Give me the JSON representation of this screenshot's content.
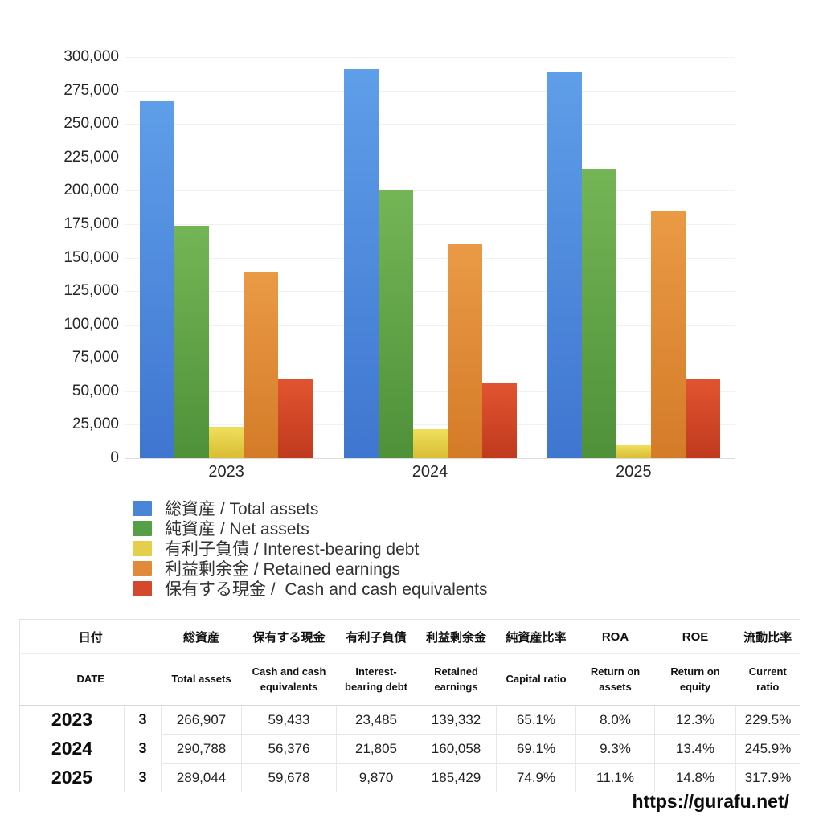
{
  "watermark": {
    "url": "https://gurafu.net/"
  },
  "chart_data": {
    "type": "bar",
    "title": "",
    "xlabel": "",
    "ylabel": "",
    "categories": [
      "2023",
      "2024",
      "2025"
    ],
    "series": [
      {
        "name": "総資産 / Total assets",
        "values": [
          266907,
          290788,
          289044
        ],
        "legend_color": "#4a86d8",
        "color_top": "#5f9ee9",
        "color_bottom": "#3f76d0"
      },
      {
        "name": "純資産 / Net assets",
        "values": [
          173757,
          200935,
          216494
        ],
        "legend_color": "#55a047",
        "color_top": "#74b556",
        "color_bottom": "#4f9139"
      },
      {
        "name": "有利子負債 / Interest-bearing debt",
        "values": [
          23485,
          21805,
          9870
        ],
        "legend_color": "#e4cf4c",
        "color_top": "#efdf5c",
        "color_bottom": "#d9bd35"
      },
      {
        "name": "利益剰余金 / Retained earnings",
        "values": [
          139332,
          160058,
          185429
        ],
        "legend_color": "#e08a3a",
        "color_top": "#ea9a45",
        "color_bottom": "#d47b28"
      },
      {
        "name": "保有する現金 /  Cash and cash equivalents",
        "values": [
          59433,
          56376,
          59678
        ],
        "legend_color": "#d4492b",
        "color_top": "#e25430",
        "color_bottom": "#c03a1e"
      }
    ],
    "ylim": [
      0,
      300000
    ],
    "ytick_step": 25000,
    "yticks": [
      "300,000",
      "275,000",
      "250,000",
      "225,000",
      "200,000",
      "175,000",
      "150,000",
      "125,000",
      "100,000",
      "75,000",
      "50,000",
      "25,000",
      "0"
    ],
    "grid": true,
    "legend_position": "bottom-left"
  },
  "table": {
    "headers_jp": [
      "日付",
      "総資産",
      "保有する現金",
      "有利子負債",
      "利益剰余金",
      "純資産比率",
      "ROA",
      "ROE",
      "流動比率"
    ],
    "headers_en": [
      "DATE",
      "Total assets",
      "Cash and cash equivalents",
      "Interest-bearing debt",
      "Retained earnings",
      "Capital ratio",
      "Return on assets",
      "Return on equity",
      "Current ratio"
    ],
    "rows": [
      {
        "year": "2023",
        "month": "3",
        "values": [
          "266,907",
          "59,433",
          "23,485",
          "139,332",
          "65.1%",
          "8.0%",
          "12.3%",
          "229.5%"
        ]
      },
      {
        "year": "2024",
        "month": "3",
        "values": [
          "290,788",
          "56,376",
          "21,805",
          "160,058",
          "69.1%",
          "9.3%",
          "13.4%",
          "245.9%"
        ]
      },
      {
        "year": "2025",
        "month": "3",
        "values": [
          "289,044",
          "59,678",
          "9,870",
          "185,429",
          "74.9%",
          "11.1%",
          "14.8%",
          "317.9%"
        ]
      }
    ]
  }
}
